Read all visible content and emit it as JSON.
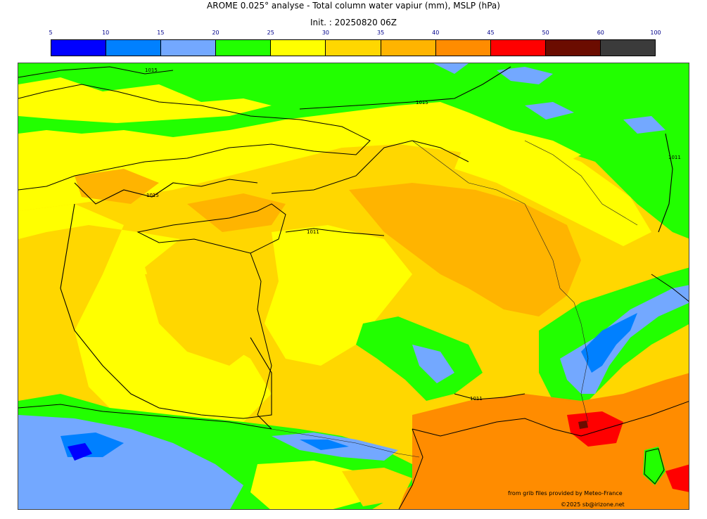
{
  "title": "AROME 0.025° analyse - Total column water vapiur (mm), MSLP (hPa)",
  "subtitle": "Init. : 20250820 06Z",
  "colorbar": {
    "ticks": [
      "5",
      "10",
      "15",
      "20",
      "25",
      "30",
      "35",
      "40",
      "45",
      "50",
      "60",
      "100"
    ],
    "colors": [
      "#0000ff",
      "#0080ff",
      "#73a8ff",
      "#22ff00",
      "#ffff00",
      "#ffd700",
      "#ffb400",
      "#ff8c00",
      "#ff0000",
      "#6b0c00",
      "#3b3b3b"
    ]
  },
  "map": {
    "isobar_labels": [
      "1015",
      "1015",
      "1011",
      "1011",
      "1015",
      "1011"
    ]
  },
  "credits": {
    "line1": "from grib files provided by Meteo-France",
    "line2": "©2025 sb@irizone.net"
  }
}
